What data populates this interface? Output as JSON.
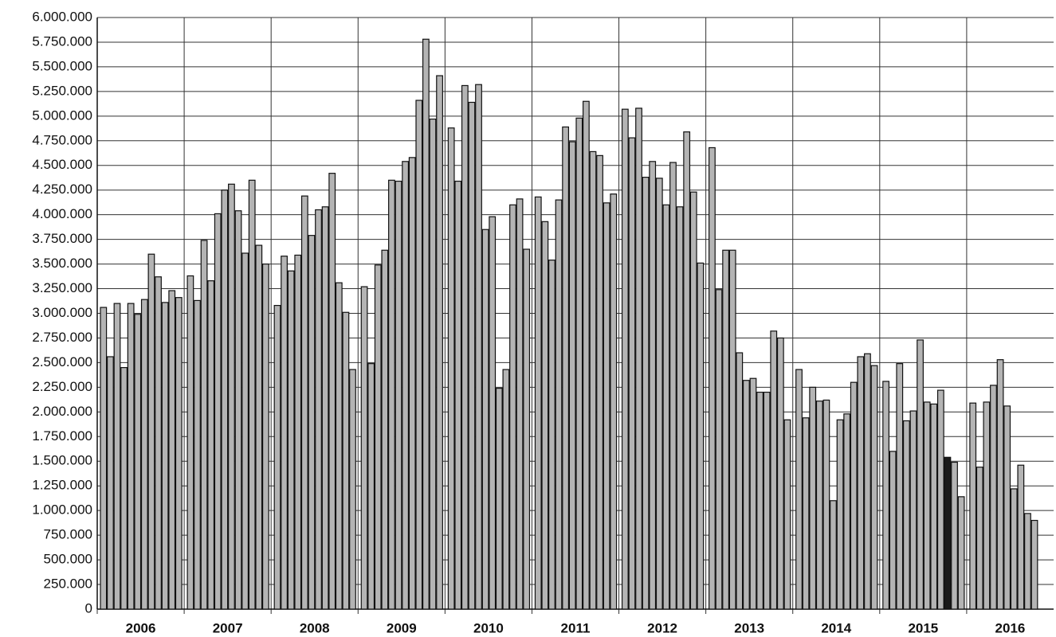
{
  "chart_data": {
    "type": "bar",
    "categories": [
      "2006",
      "2007",
      "2008",
      "2009",
      "2010",
      "2011",
      "2012",
      "2013",
      "2014",
      "2015",
      "2016"
    ],
    "slots_per_category": 12,
    "values": [
      [
        3060000,
        2560000,
        3100000,
        2450000,
        3100000,
        2990000,
        3140000,
        3600000,
        3370000,
        3110000,
        3230000,
        3160000
      ],
      [
        3380000,
        3130000,
        3740000,
        3330000,
        4010000,
        4250000,
        4310000,
        4040000,
        3610000,
        4350000,
        3690000,
        3500000
      ],
      [
        3080000,
        3580000,
        3430000,
        3590000,
        4190000,
        3790000,
        4050000,
        4080000,
        4420000,
        3310000,
        3010000,
        2430000
      ],
      [
        3270000,
        2490000,
        3490000,
        3640000,
        4350000,
        4340000,
        4540000,
        4580000,
        5160000,
        5780000,
        4970000,
        5410000
      ],
      [
        4880000,
        4340000,
        5310000,
        5140000,
        5320000,
        3850000,
        3980000,
        2240000,
        2430000,
        4100000,
        4160000,
        3650000
      ],
      [
        4180000,
        3930000,
        3540000,
        4150000,
        4890000,
        4740000,
        4980000,
        5150000,
        4640000,
        4600000,
        4120000,
        4210000
      ],
      [
        5070000,
        4780000,
        5080000,
        4380000,
        4540000,
        4370000,
        4100000,
        4530000,
        4080000,
        4840000,
        4230000,
        3510000
      ],
      [
        4680000,
        3240000,
        3640000,
        3640000,
        2600000,
        2320000,
        2340000,
        2200000,
        2200000,
        2820000,
        2750000,
        1920000
      ],
      [
        2430000,
        1940000,
        2250000,
        2110000,
        2120000,
        1100000,
        1920000,
        1980000,
        2300000,
        2560000,
        2590000,
        2470000
      ],
      [
        2310000,
        1600000,
        2490000,
        1910000,
        2010000,
        2730000,
        2100000,
        2080000,
        2220000,
        1540000,
        1490000,
        1140000
      ],
      [
        2090000,
        1440000,
        2100000,
        2270000,
        2530000,
        2060000,
        1220000,
        1460000,
        970000,
        900000
      ]
    ],
    "color": "#b4b4b4",
    "highlight": {
      "category": 9,
      "index": 9,
      "color": "#1a1a1a"
    },
    "ylim": [
      0,
      6000000
    ],
    "yticks": [
      0,
      {
        "value": 250000,
        "label": "250.000"
      },
      {
        "value": 500000,
        "label": "500.000"
      },
      {
        "value": 750000,
        "label": "750.000"
      },
      {
        "value": 1000000,
        "label": "1.000.000"
      },
      {
        "value": 1250000,
        "label": "1.250.000"
      },
      {
        "value": 1500000,
        "label": "1.500.000"
      },
      {
        "value": 1750000,
        "label": "1.750.000"
      },
      {
        "value": 2000000,
        "label": "2.000.000"
      },
      {
        "value": 2250000,
        "label": "2.250.000"
      },
      {
        "value": 2500000,
        "label": "2.500.000"
      },
      {
        "value": 2750000,
        "label": "2.750.000"
      },
      {
        "value": 3000000,
        "label": "3.000.000"
      },
      {
        "value": 3250000,
        "label": "3.250.000"
      },
      {
        "value": 3500000,
        "label": "3.500.000"
      },
      {
        "value": 3750000,
        "label": "3.750.000"
      },
      {
        "value": 4000000,
        "label": "4.000.000"
      },
      {
        "value": 4250000,
        "label": "4.250.000"
      },
      {
        "value": 4500000,
        "label": "4.500.000"
      },
      {
        "value": 4750000,
        "label": "4.750.000"
      },
      {
        "value": 5000000,
        "label": "5.000.000"
      },
      {
        "value": 5250000,
        "label": "5.250.000"
      },
      {
        "value": 5500000,
        "label": "5.500.000"
      },
      {
        "value": 5750000,
        "label": "5.750.000"
      },
      {
        "value": 6000000,
        "label": "6.000.000"
      }
    ],
    "grid": true
  }
}
